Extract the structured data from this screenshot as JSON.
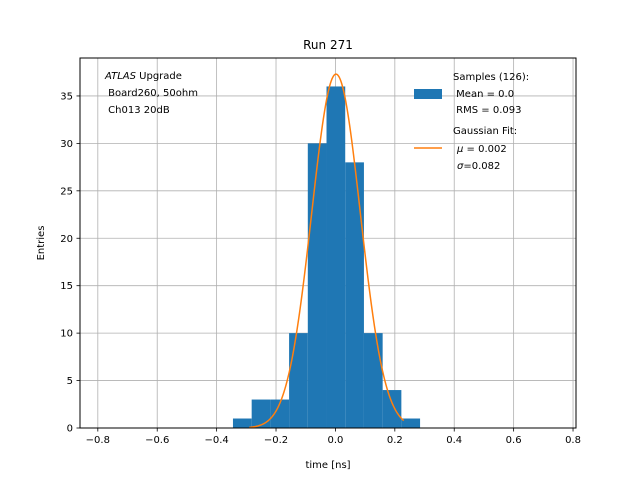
{
  "chart_data": {
    "type": "bar",
    "title": "Run 271",
    "xlabel": "time [ns]",
    "ylabel": "Entries",
    "xlim": [
      -0.86,
      0.81
    ],
    "ylim": [
      0,
      39
    ],
    "grid": true,
    "xticks": [
      -0.8,
      -0.6,
      -0.4,
      -0.2,
      0.0,
      0.2,
      0.4,
      0.6,
      0.8
    ],
    "xtick_labels": [
      "−0.8",
      "−0.6",
      "−0.4",
      "−0.2",
      "0.0",
      "0.2",
      "0.4",
      "0.6",
      "0.8"
    ],
    "yticks": [
      0,
      5,
      10,
      15,
      20,
      25,
      30,
      35
    ],
    "ytick_labels": [
      "0",
      "5",
      "10",
      "15",
      "20",
      "25",
      "30",
      "35"
    ],
    "histogram": {
      "name": "Samples",
      "color": "#1f77b4",
      "bins": [
        {
          "x0": -0.345,
          "x1": -0.282,
          "count": 1
        },
        {
          "x0": -0.282,
          "x1": -0.219,
          "count": 3
        },
        {
          "x0": -0.219,
          "x1": -0.156,
          "count": 3
        },
        {
          "x0": -0.156,
          "x1": -0.093,
          "count": 10
        },
        {
          "x0": -0.093,
          "x1": -0.03,
          "count": 30
        },
        {
          "x0": -0.03,
          "x1": 0.033,
          "count": 36
        },
        {
          "x0": 0.033,
          "x1": 0.096,
          "count": 28
        },
        {
          "x0": 0.096,
          "x1": 0.159,
          "count": 10
        },
        {
          "x0": 0.159,
          "x1": 0.222,
          "count": 4
        },
        {
          "x0": 0.222,
          "x1": 0.285,
          "count": 1
        }
      ]
    },
    "fit": {
      "name": "Gaussian Fit",
      "color": "#ff7f0e",
      "amplitude": 37.3,
      "mu": 0.002,
      "sigma": 0.082,
      "x_range": [
        -0.29,
        0.23
      ]
    },
    "annotation": {
      "line1_italic": "ATLAS",
      "line1_rest": " Upgrade",
      "line2": " Board260, 50ohm",
      "line3": " Ch013 20dB"
    },
    "legend": {
      "placement": "top-right",
      "samples_title": "Samples (126):",
      "samples_mean": " Mean = 0.0",
      "samples_rms": " RMS = 0.093",
      "fit_title": "Gaussian Fit:",
      "fit_mu_symbol": "μ",
      "fit_mu_rest": " = 0.002",
      "fit_sigma_symbol": "σ",
      "fit_sigma_rest": "=0.082"
    }
  }
}
